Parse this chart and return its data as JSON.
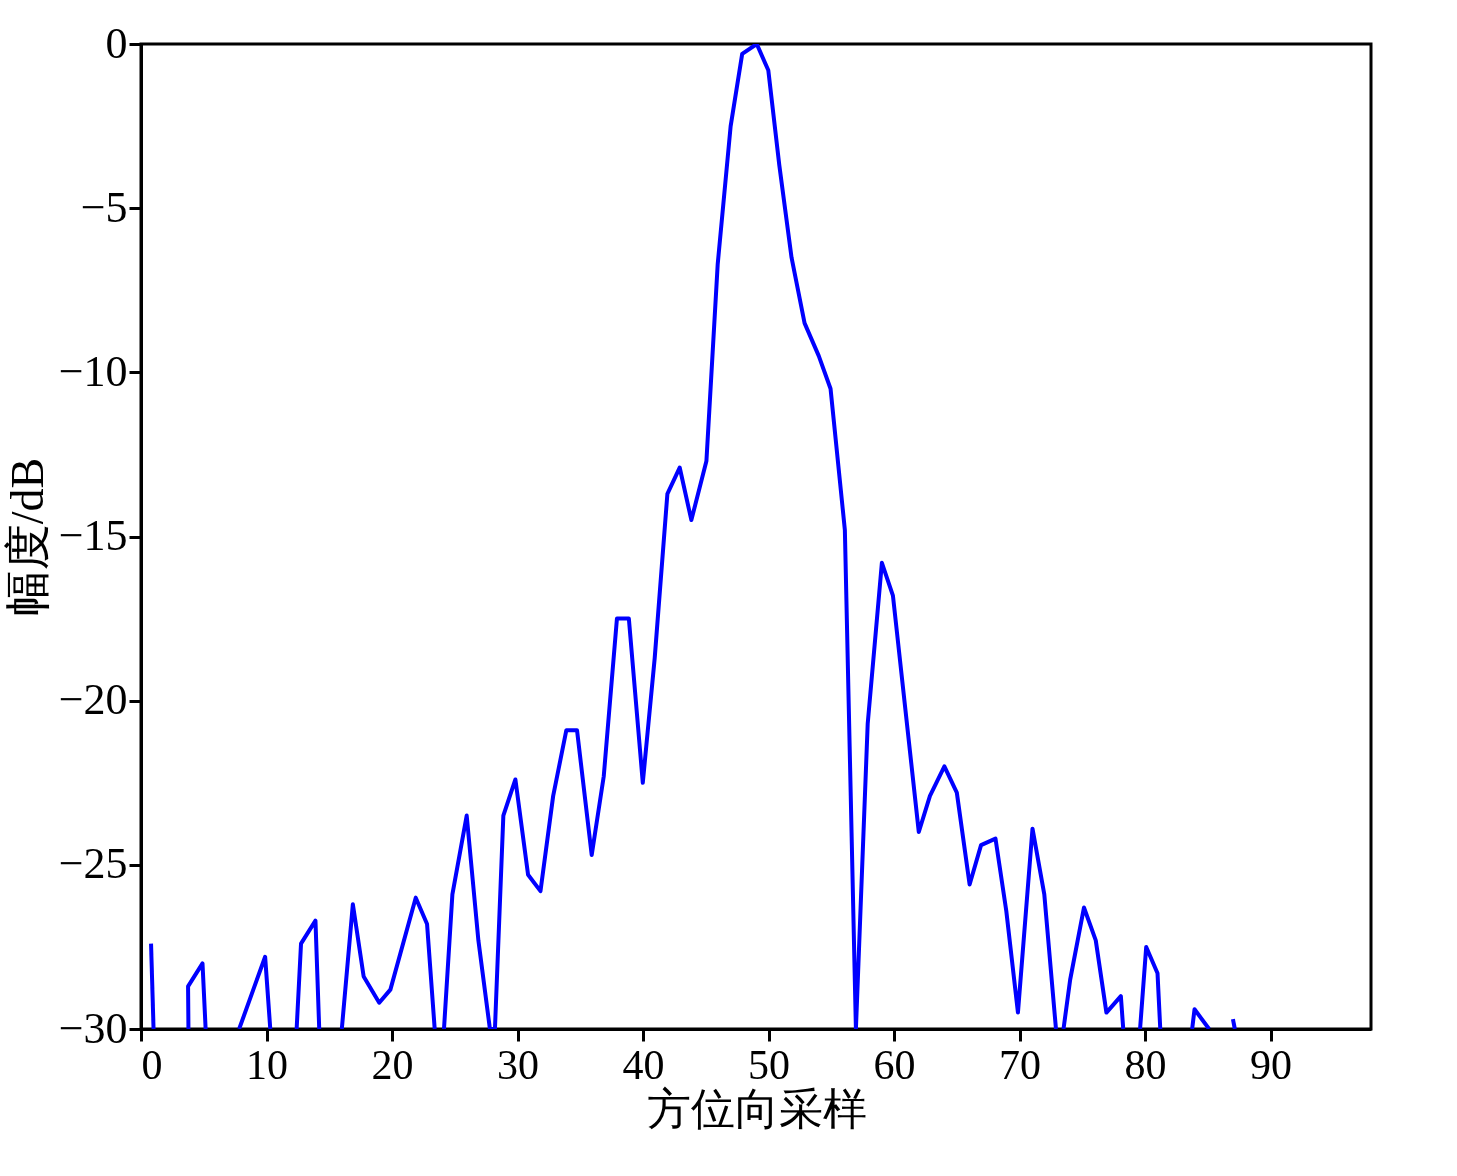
{
  "chart_data": {
    "type": "line",
    "xlabel": "方位向采样",
    "ylabel": "幅度/dB",
    "xlim": [
      0,
      98
    ],
    "xticks": [
      0,
      10,
      20,
      30,
      40,
      50,
      60,
      70,
      80,
      90
    ],
    "ylim": [
      -30,
      0
    ],
    "yticks": [
      0,
      {
        "value": -5,
        "label": "−5"
      },
      {
        "value": -10,
        "label": "−10"
      },
      {
        "value": -15,
        "label": "−15"
      },
      {
        "value": -20,
        "label": "−20"
      },
      {
        "value": -25,
        "label": "−25"
      },
      {
        "value": -30,
        "label": "−30"
      }
    ],
    "grid": false,
    "legend": false,
    "marker": "none",
    "line_style": "solid",
    "series": [
      {
        "color": "#0000ff",
        "x": [
          0.8,
          1.0,
          2.4,
          3.78,
          3.75,
          4.9,
          5.15,
          6.5,
          7.82,
          9.89,
          10.3,
          11.3,
          12.4,
          12.75,
          13.9,
          14.2,
          15.1,
          16.0,
          16.88,
          17.74,
          18.98,
          19.87,
          21.89,
          22.79,
          23.4,
          23.8,
          24.14,
          24.81,
          25.95,
          26.88,
          27.8,
          28.0,
          28.2,
          28.87,
          29.83,
          30.84,
          31.83,
          32.84,
          33.89,
          34.74,
          35.91,
          36.87,
          37.92,
          38.87,
          39.98,
          40.93,
          41.94,
          42.92,
          43.85,
          45.05,
          45.95,
          46.98,
          47.9,
          49.06,
          49.98,
          50.86,
          51.83,
          52.87,
          54.0,
          54.94,
          56.08,
          56.96,
          57.9,
          59.03,
          59.91,
          61.97,
          62.86,
          64.01,
          65.0,
          66.02,
          66.93,
          68.08,
          68.94,
          69.87,
          71.03,
          71.97,
          72.9,
          73.2,
          73.5,
          74.03,
          75.13,
          76.07,
          76.92,
          78.07,
          78.26,
          78.9,
          79.6,
          80.09,
          80.99,
          81.21,
          82.5,
          83.75,
          83.94,
          85.1,
          86.0,
          87.0,
          87.15
        ],
        "values": [
          -27.4,
          -30,
          null,
          -30,
          -28.7,
          -28.0,
          -30,
          null,
          -30,
          -27.8,
          -30,
          null,
          -30,
          -27.4,
          -26.7,
          -30,
          null,
          -30,
          -26.2,
          -28.4,
          -29.2,
          -28.8,
          -26.0,
          -26.8,
          -30,
          null,
          -30,
          -25.9,
          -23.5,
          -27.3,
          -30,
          -30,
          -30,
          -23.5,
          -22.4,
          -25.3,
          -25.8,
          -22.9,
          -20.9,
          -20.9,
          -24.7,
          -22.3,
          -17.5,
          -17.5,
          -22.5,
          -18.7,
          -13.7,
          -12.9,
          -14.5,
          -12.7,
          -6.7,
          -2.5,
          -0.3,
          0,
          -0.8,
          -3.7,
          -6.5,
          -8.5,
          -9.5,
          -10.5,
          -14.8,
          -30,
          -20.7,
          -15.8,
          -16.8,
          -24.0,
          -22.9,
          -22.0,
          -22.8,
          -25.6,
          -24.4,
          -24.2,
          -26.4,
          -29.5,
          -23.9,
          -25.9,
          -30,
          null,
          -30,
          -28.5,
          -26.3,
          -27.3,
          -29.5,
          -29.0,
          -30,
          null,
          -30,
          -27.5,
          -28.3,
          -30,
          null,
          -30,
          -29.4,
          -30,
          null,
          -29.7,
          -30
        ]
      }
    ]
  }
}
